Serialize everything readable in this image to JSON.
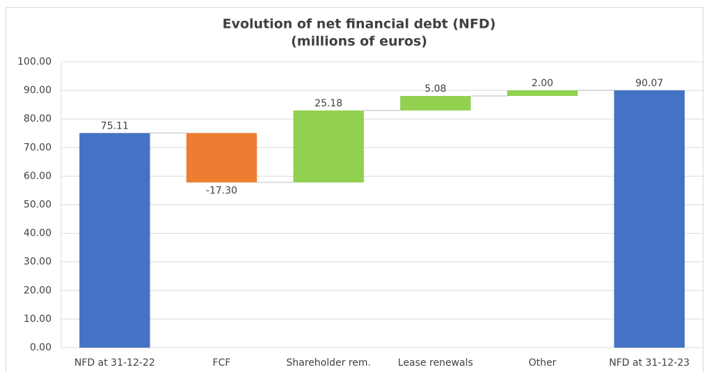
{
  "chart_data": {
    "type": "waterfall",
    "title": "Evolution of net financial debt (NFD)",
    "subtitle": "(millions of euros)",
    "categories": [
      "NFD at 31-12-22",
      "FCF",
      "Shareholder rem.",
      "Lease renewals",
      "Other",
      "NFD at 31-12-23"
    ],
    "values": [
      75.11,
      -17.3,
      25.18,
      5.08,
      2,
      90.07
    ],
    "value_labels": [
      "75.11",
      "-17.30",
      "25.18",
      "5.08",
      "2.00",
      "90.07"
    ],
    "measure": [
      "absolute",
      "relative",
      "relative",
      "relative",
      "relative",
      "absolute"
    ],
    "colors": [
      "#4472c4",
      "#ed7d31",
      "#92d050",
      "#92d050",
      "#92d050",
      "#4472c4"
    ],
    "ylim": [
      0,
      100
    ],
    "yticks": [
      {
        "value": 0,
        "label": "0.00"
      },
      {
        "value": 10,
        "label": "10.00"
      },
      {
        "value": 20,
        "label": "20.00"
      },
      {
        "value": 30,
        "label": "30.00"
      },
      {
        "value": 40,
        "label": "40.00"
      },
      {
        "value": 50,
        "label": "50.00"
      },
      {
        "value": 60,
        "label": "60.00"
      },
      {
        "value": 70,
        "label": "70.00"
      },
      {
        "value": 80,
        "label": "80.00"
      },
      {
        "value": 90,
        "label": "90.00"
      },
      {
        "value": 100,
        "label": "100.00"
      }
    ],
    "grid": true
  }
}
